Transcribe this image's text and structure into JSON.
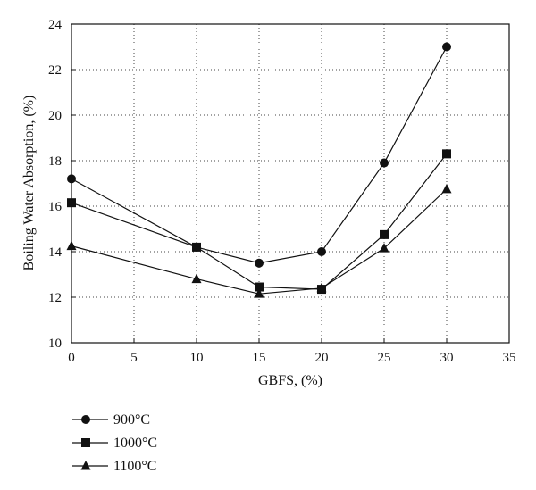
{
  "chart_data": {
    "type": "line",
    "xlabel": "GBFS, (%)",
    "ylabel": "Boiling Water Absorption, (%)",
    "xlim": [
      0,
      35
    ],
    "ylim": [
      10,
      24
    ],
    "x_ticks": [
      0,
      5,
      10,
      15,
      20,
      25,
      30,
      35
    ],
    "y_ticks": [
      10,
      12,
      14,
      16,
      18,
      20,
      22,
      24
    ],
    "grid": "dotted",
    "legend_position": "bottom-left, outside plot",
    "series": [
      {
        "name": "900°C",
        "marker": "circle",
        "x": [
          0,
          10,
          15,
          20,
          25,
          30
        ],
        "values": [
          17.2,
          14.2,
          13.5,
          14.0,
          17.9,
          23.0
        ]
      },
      {
        "name": "1000°C",
        "marker": "square",
        "x": [
          0,
          10,
          15,
          20,
          25,
          30
        ],
        "values": [
          16.15,
          14.2,
          12.45,
          12.35,
          14.75,
          18.3
        ]
      },
      {
        "name": "1100°C",
        "marker": "triangle",
        "x": [
          0,
          10,
          15,
          20,
          25,
          30
        ],
        "values": [
          14.25,
          12.8,
          12.15,
          12.4,
          14.15,
          16.75
        ]
      }
    ]
  }
}
